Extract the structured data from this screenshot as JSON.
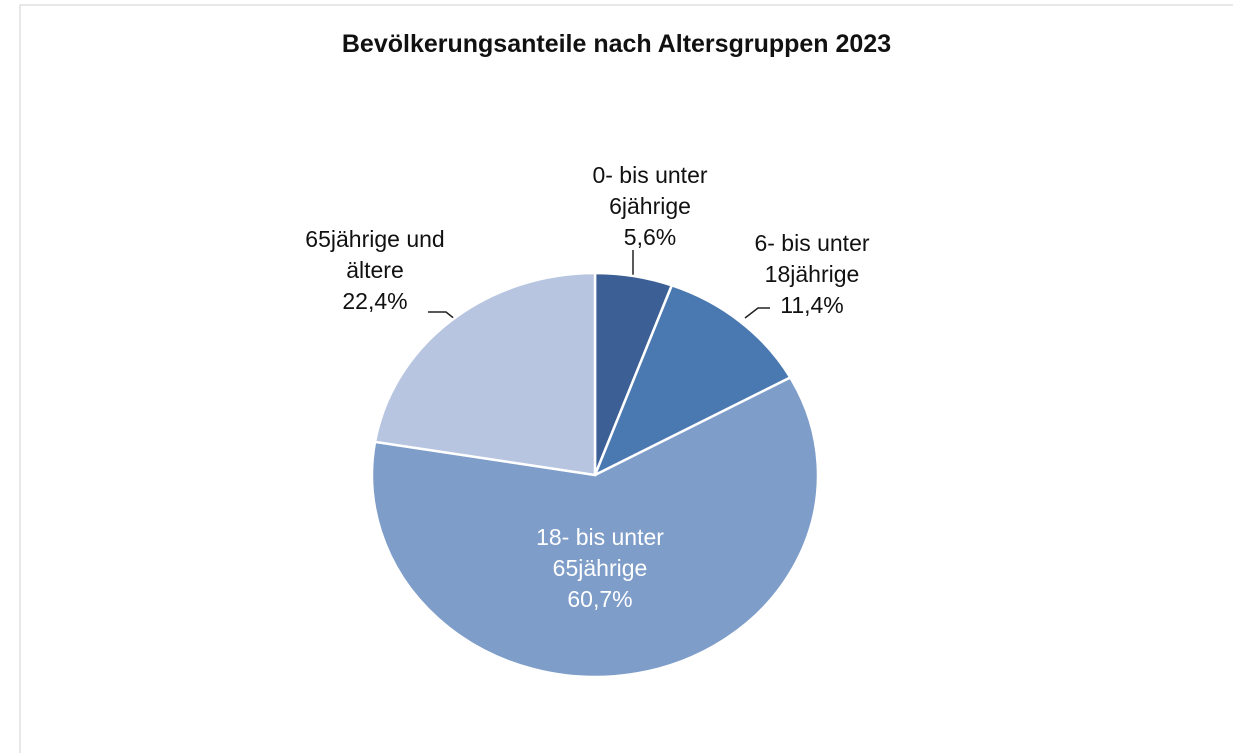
{
  "chart_data": {
    "type": "pie",
    "title": "Bevölkerungsanteile nach Altersgruppen 2023",
    "categories": [
      "0- bis unter 6jährige",
      "6- bis unter 18jährige",
      "18- bis unter 65jährige",
      "65jährige und ältere"
    ],
    "values": [
      5.6,
      11.4,
      60.7,
      22.4
    ],
    "value_labels": [
      "5,6%",
      "11,4%",
      "60,7%",
      "22,4%"
    ],
    "colors": [
      "#3c6096",
      "#4a78b0",
      "#7f9dc9",
      "#b7c5e0"
    ]
  }
}
